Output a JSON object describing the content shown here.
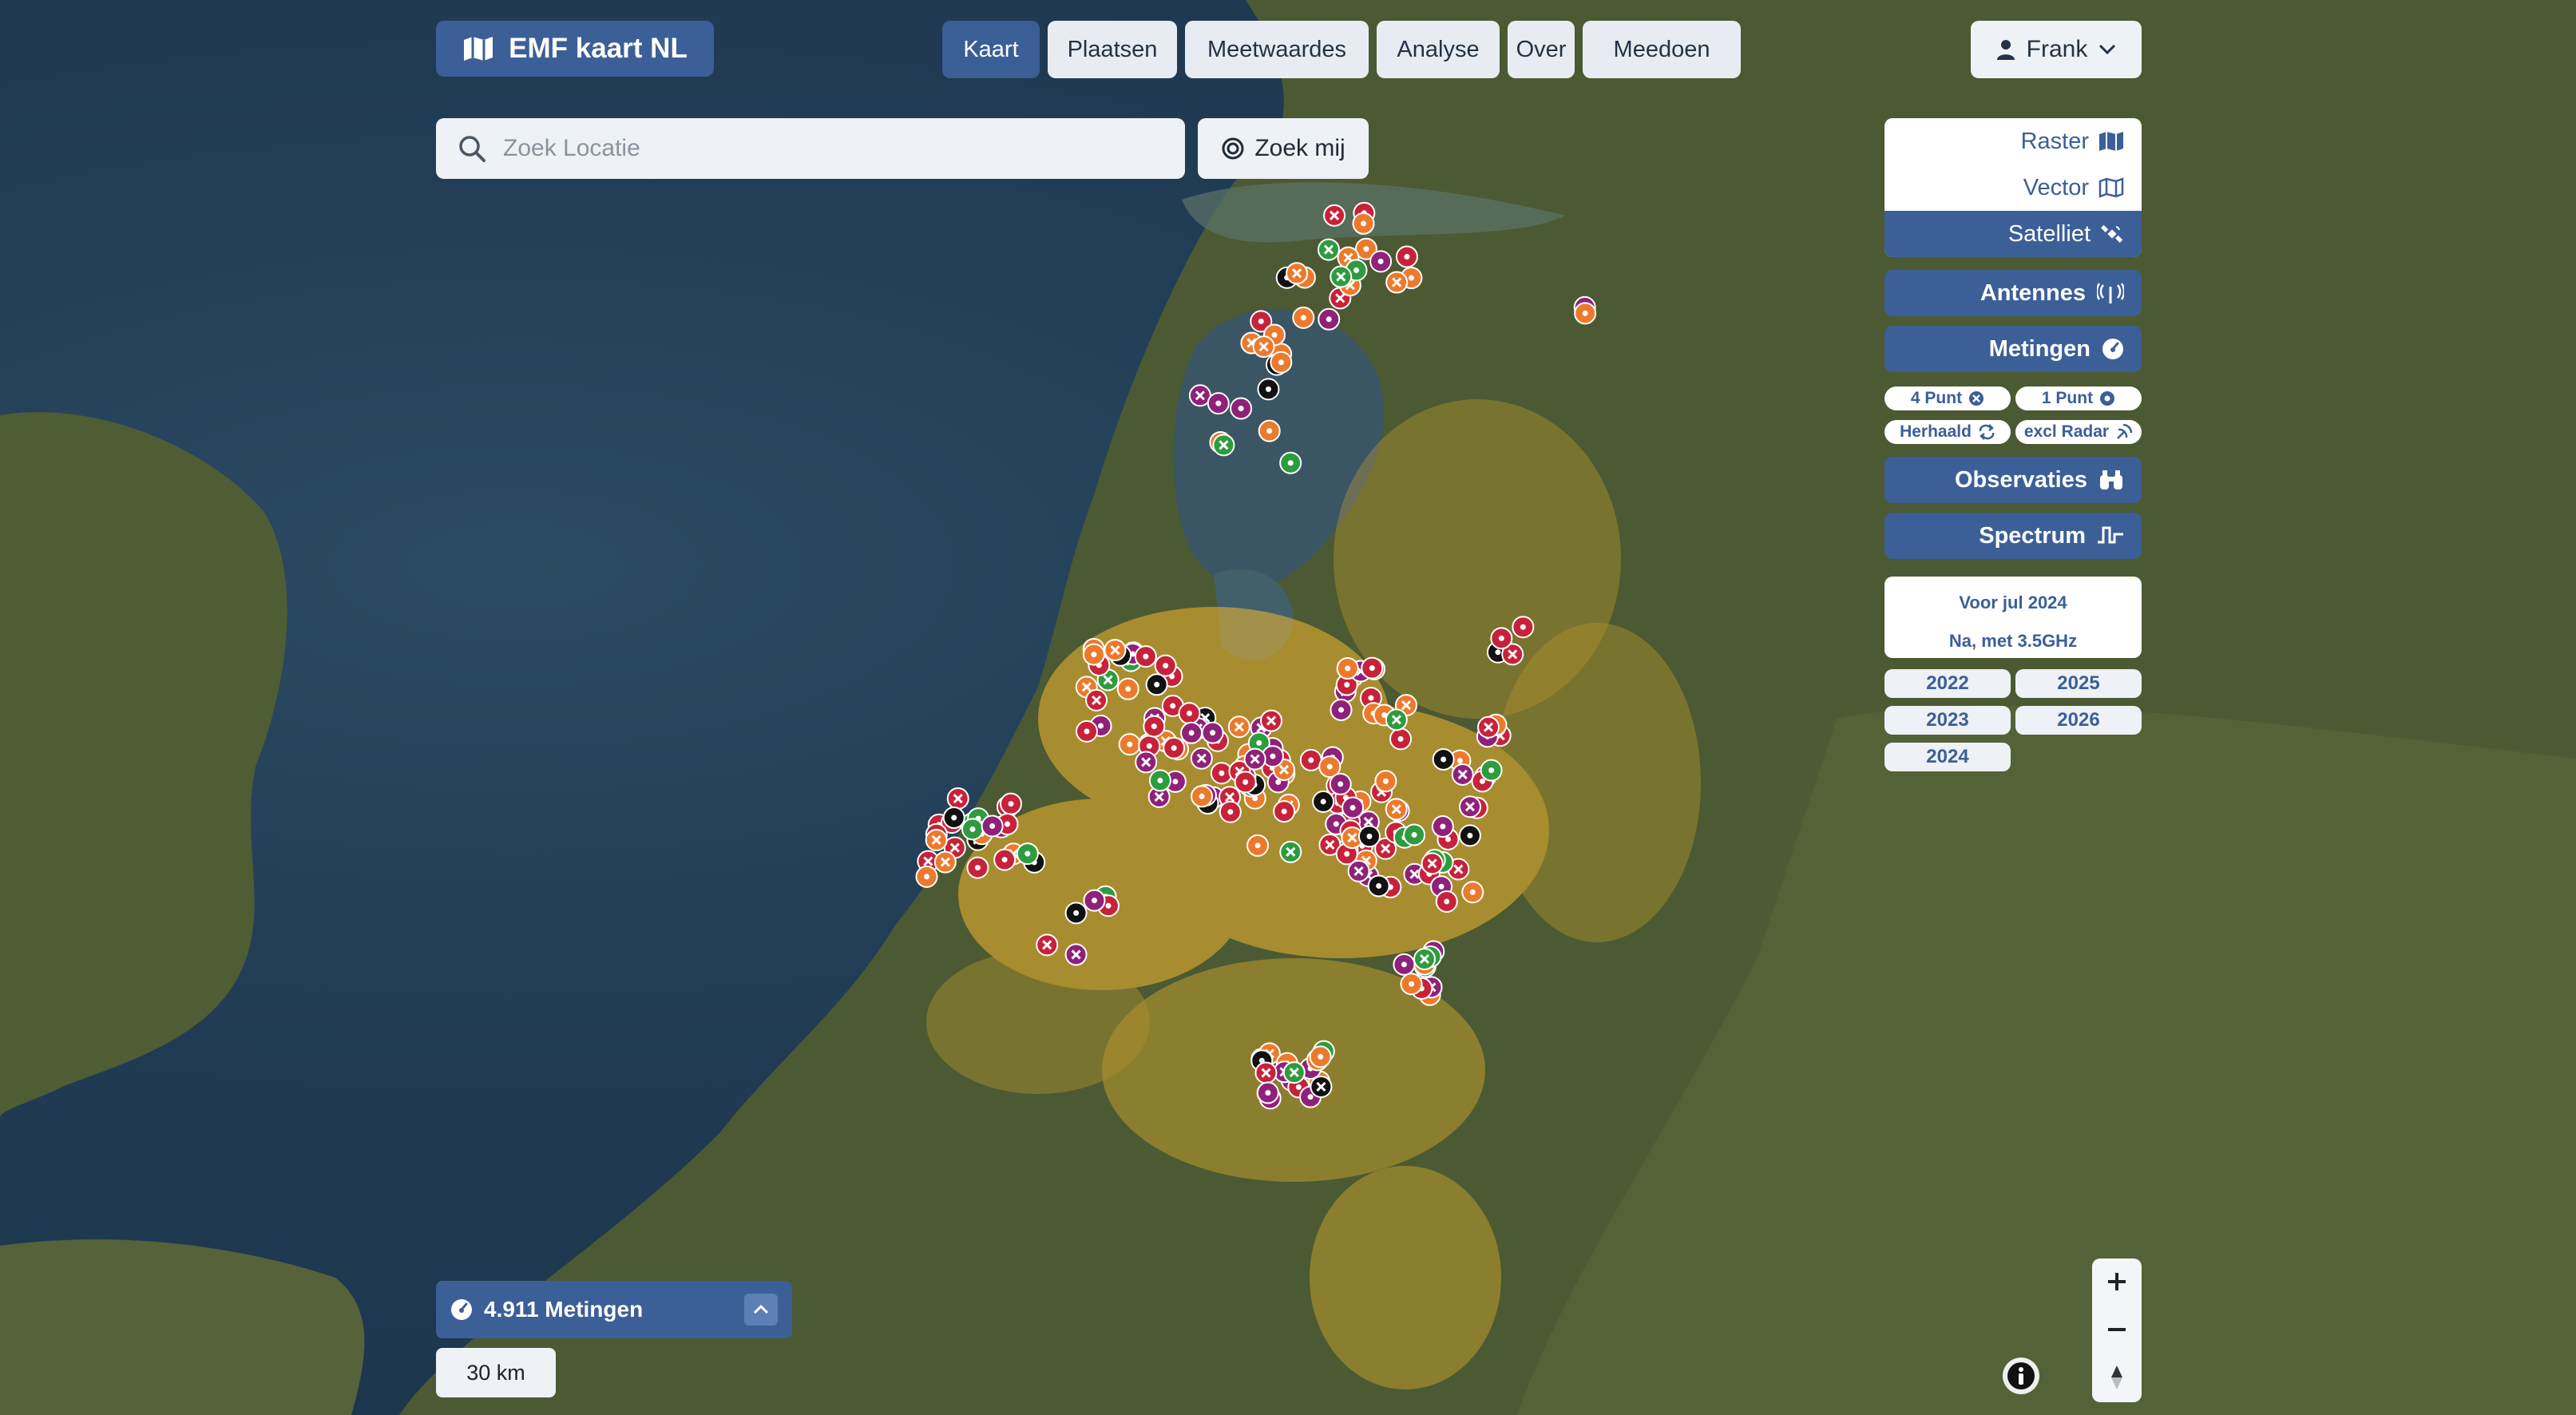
{
  "brand": {
    "title": "EMF kaart NL",
    "icon": "map-icon"
  },
  "nav": {
    "items": [
      {
        "label": "Kaart",
        "active": true
      },
      {
        "label": "Plaatsen",
        "active": false
      },
      {
        "label": "Meetwaardes",
        "active": false
      },
      {
        "label": "Analyse",
        "active": false
      },
      {
        "label": "Over",
        "active": false
      },
      {
        "label": "Meedoen",
        "active": false
      }
    ]
  },
  "user": {
    "name": "Frank",
    "icon": "user-icon"
  },
  "search": {
    "placeholder": "Zoek Locatie",
    "value": ""
  },
  "findme": {
    "label": "Zoek mij",
    "icon": "crosshair-icon"
  },
  "layers": {
    "basemaps": [
      {
        "label": "Raster",
        "icon": "map-filled-icon",
        "active": false
      },
      {
        "label": "Vector",
        "icon": "map-outline-icon",
        "active": false
      },
      {
        "label": "Satelliet",
        "icon": "satellite-icon",
        "active": true
      }
    ],
    "antennes": {
      "label": "Antennes",
      "icon": "antenna-icon"
    },
    "metingen": {
      "label": "Metingen",
      "icon": "gauge-icon"
    },
    "filters": [
      {
        "label": "4 Punt",
        "icon": "x-circle-icon"
      },
      {
        "label": "1 Punt",
        "icon": "dot-circle-icon"
      },
      {
        "label": "Herhaald",
        "icon": "repeat-icon"
      },
      {
        "label": "excl Radar",
        "icon": "radar-icon"
      }
    ],
    "observaties": {
      "label": "Observaties",
      "icon": "binoculars-icon"
    },
    "spectrum": {
      "label": "Spectrum",
      "icon": "spectrum-icon"
    }
  },
  "dates": {
    "line1": "Voor jul 2024",
    "line2": "Na, met 3.5GHz",
    "years": [
      "2022",
      "2025",
      "2023",
      "2026",
      "2024"
    ]
  },
  "measurements": {
    "count_label": "4.911 Metingen",
    "icon": "gauge-icon"
  },
  "scale": {
    "label": "30 km"
  },
  "map": {
    "marker_colors": {
      "red": "#c7223a",
      "orange": "#ec7a2c",
      "purple": "#8f2179",
      "green": "#2e9b3e",
      "black": "#111111",
      "density": "#f5b82e"
    },
    "accent": "#3c5f98"
  }
}
